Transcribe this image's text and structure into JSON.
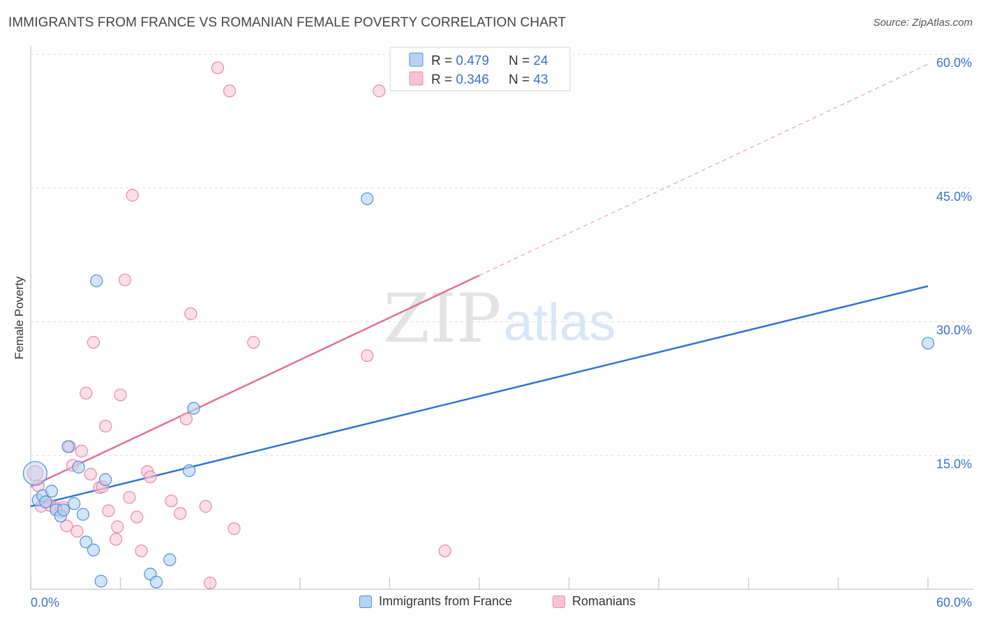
{
  "colors": {
    "blue": "#4e8fdc",
    "blue_fill": "#b8d2f3",
    "blue_line": "#2f74d0",
    "pink": "#e889a8",
    "pink_fill": "#f7c3d4",
    "pink_line": "#e0709a",
    "axis_label": "#3a72c8",
    "grid": "#dddddd"
  },
  "chart_data": {
    "type": "scatter",
    "title": "IMMIGRANTS FROM FRANCE VS ROMANIAN FEMALE POVERTY CORRELATION CHART",
    "source": "Source: ZipAtlas.com",
    "xlabel": "",
    "ylabel": "Female Poverty",
    "xlim": [
      0,
      60
    ],
    "ylim": [
      0,
      60
    ],
    "x_tick_labels": [
      "0.0%",
      "60.0%"
    ],
    "y_ticks": [
      15,
      30,
      45,
      60
    ],
    "y_tick_labels": [
      "15.0%",
      "30.0%",
      "45.0%",
      "60.0%"
    ],
    "watermark": {
      "zip": "ZIP",
      "atlas": "atlas"
    },
    "stats": [
      {
        "r_label": "R = ",
        "r_value": "0.479",
        "n_label": "N = ",
        "n_value": "24"
      },
      {
        "r_label": "R = ",
        "r_value": "0.346",
        "n_label": "N = ",
        "n_value": "43"
      }
    ],
    "series": [
      {
        "name": "Immigrants from France",
        "trend": {
          "x0": 0,
          "y0": 9.3,
          "x1": 60,
          "y1": 34.0
        },
        "points": [
          [
            0.3,
            13.0
          ],
          [
            0.5,
            10.0
          ],
          [
            0.8,
            10.5
          ],
          [
            1.0,
            9.8
          ],
          [
            1.4,
            11.0
          ],
          [
            1.7,
            8.9
          ],
          [
            2.0,
            8.2
          ],
          [
            2.2,
            8.9
          ],
          [
            2.5,
            16.0
          ],
          [
            2.9,
            9.6
          ],
          [
            3.2,
            13.7
          ],
          [
            3.5,
            8.4
          ],
          [
            3.7,
            5.3
          ],
          [
            4.2,
            4.4
          ],
          [
            4.4,
            34.6
          ],
          [
            4.7,
            0.9
          ],
          [
            5.0,
            12.3
          ],
          [
            8.0,
            1.7
          ],
          [
            8.4,
            0.8
          ],
          [
            9.3,
            3.3
          ],
          [
            10.6,
            13.3
          ],
          [
            10.9,
            20.3
          ],
          [
            22.5,
            43.8
          ],
          [
            60.0,
            27.6
          ]
        ]
      },
      {
        "name": "Romanians",
        "trend": {
          "x0": 0,
          "y0": 11.5,
          "x1": 30,
          "y1": 35.2,
          "dash_to_x": 60,
          "dash_to_y": 58.9
        },
        "points": [
          [
            0.3,
            13.0
          ],
          [
            0.5,
            11.6
          ],
          [
            0.7,
            9.3
          ],
          [
            1.0,
            9.8
          ],
          [
            1.3,
            9.4
          ],
          [
            1.7,
            9.1
          ],
          [
            2.0,
            8.7
          ],
          [
            2.2,
            9.2
          ],
          [
            2.4,
            7.1
          ],
          [
            2.6,
            16.0
          ],
          [
            2.8,
            13.9
          ],
          [
            3.1,
            6.5
          ],
          [
            3.4,
            15.5
          ],
          [
            3.7,
            22.0
          ],
          [
            4.0,
            12.9
          ],
          [
            4.2,
            27.7
          ],
          [
            4.6,
            11.4
          ],
          [
            4.8,
            11.5
          ],
          [
            5.0,
            18.3
          ],
          [
            5.2,
            8.8
          ],
          [
            5.7,
            5.6
          ],
          [
            5.8,
            7.0
          ],
          [
            6.0,
            21.8
          ],
          [
            6.3,
            34.7
          ],
          [
            6.6,
            10.3
          ],
          [
            6.8,
            44.2
          ],
          [
            7.1,
            8.1
          ],
          [
            7.4,
            4.3
          ],
          [
            7.8,
            13.2
          ],
          [
            8.0,
            12.6
          ],
          [
            9.4,
            9.9
          ],
          [
            10.0,
            8.5
          ],
          [
            10.4,
            19.1
          ],
          [
            10.7,
            30.9
          ],
          [
            11.7,
            9.3
          ],
          [
            12.0,
            0.7
          ],
          [
            12.5,
            58.5
          ],
          [
            13.3,
            55.9
          ],
          [
            13.6,
            6.8
          ],
          [
            14.9,
            27.7
          ],
          [
            22.5,
            26.2
          ],
          [
            23.3,
            55.9
          ],
          [
            27.7,
            4.3
          ]
        ]
      }
    ]
  }
}
